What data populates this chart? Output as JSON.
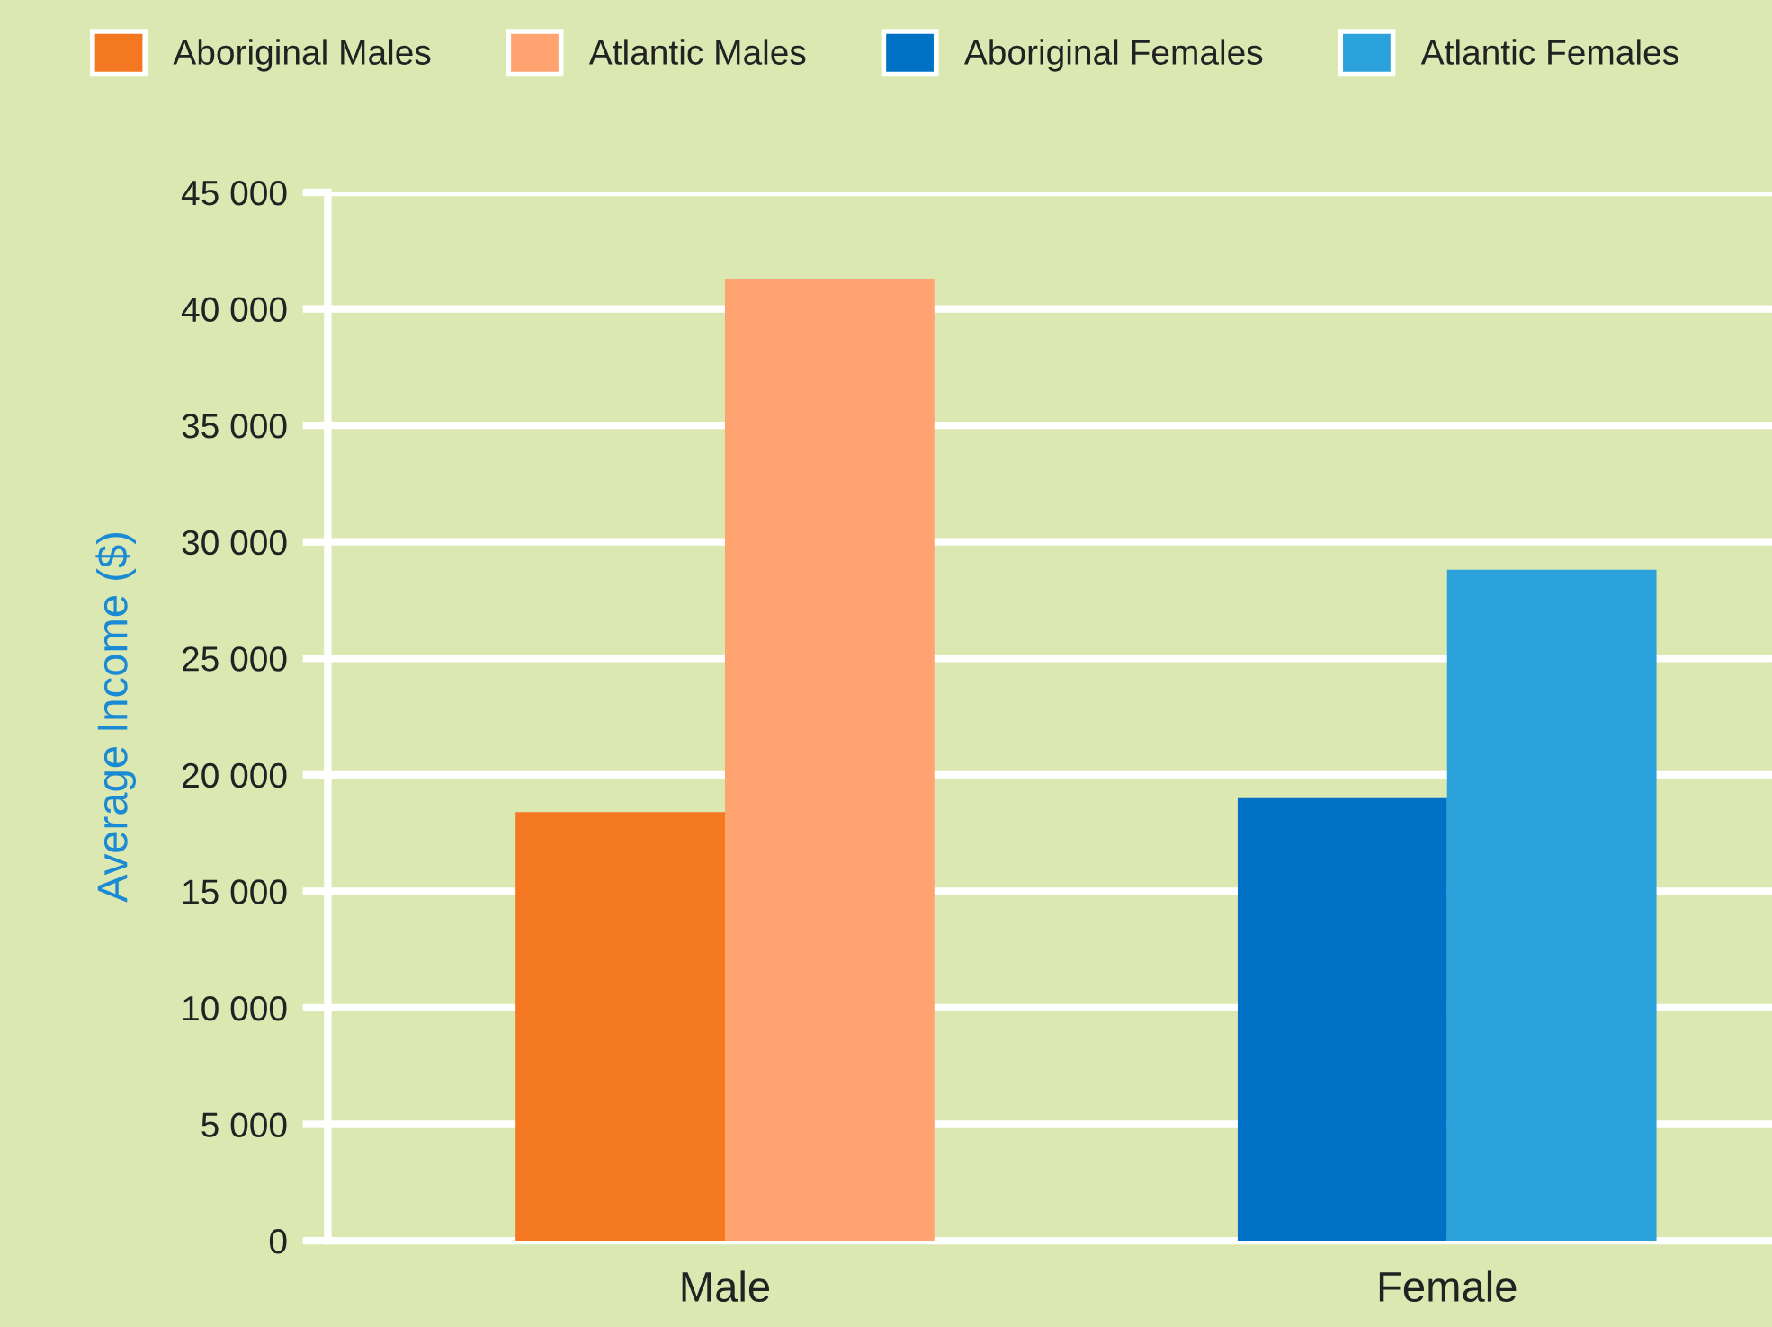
{
  "chart_data": {
    "type": "bar",
    "ylabel": "Average Income ($)",
    "categories": [
      "Male",
      "Female"
    ],
    "series": [
      {
        "name": "Aboriginal Males",
        "color": "#f47721",
        "values": [
          18400,
          null
        ]
      },
      {
        "name": "Atlantic Males",
        "color": "#ffa370",
        "values": [
          41300,
          null
        ]
      },
      {
        "name": "Aboriginal Females",
        "color": "#0072c6",
        "values": [
          null,
          19000
        ]
      },
      {
        "name": "Atlantic Females",
        "color": "#2ca2dc",
        "values": [
          null,
          28800
        ]
      }
    ],
    "ylim": [
      0,
      45000
    ],
    "yticks": [
      {
        "value": 0,
        "label": "0"
      },
      {
        "value": 5000,
        "label": "5 000"
      },
      {
        "value": 10000,
        "label": "10 000"
      },
      {
        "value": 15000,
        "label": "15 000"
      },
      {
        "value": 20000,
        "label": "20 000"
      },
      {
        "value": 25000,
        "label": "25 000"
      },
      {
        "value": 30000,
        "label": "30 000"
      },
      {
        "value": 35000,
        "label": "35 000"
      },
      {
        "value": 40000,
        "label": "40 000"
      },
      {
        "value": 45000,
        "label": "45 000"
      }
    ],
    "grid": "y",
    "legend": "top"
  }
}
